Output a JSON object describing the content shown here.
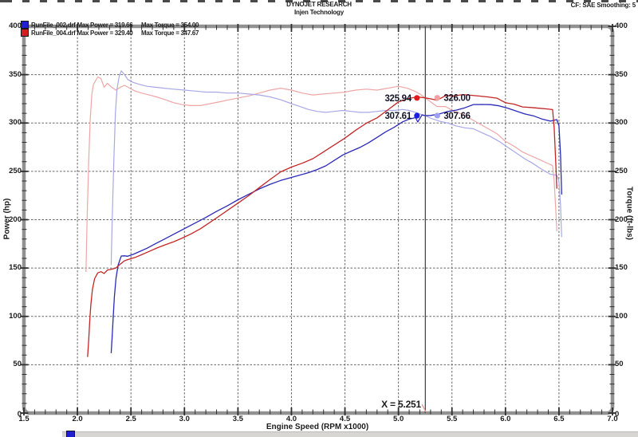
{
  "header": {
    "title": "DYNOJET RESEARCH",
    "subtitle": "Injen Technology",
    "correction": "CF: SAE Smoothing: 5"
  },
  "legend": [
    {
      "file": "RunFile_002.drf",
      "max_power_label": "Max Power = 319.66",
      "max_torque_label": "Max Torque = 354.00",
      "color": "#2020d0"
    },
    {
      "file": "RunFile_004.drf",
      "max_power_label": "Max Power = 329.40",
      "max_torque_label": "Max Torque = 347.67",
      "color": "#d02020"
    }
  ],
  "cursor": {
    "x": 5.251,
    "label": "X = 5.251",
    "line_color": "#3c3c3c",
    "leader_color": "#e89090",
    "markers": [
      {
        "label": "325.94",
        "value": 325.94,
        "side": "left",
        "color": "#e01d1d"
      },
      {
        "label": "326.00",
        "value": 326.0,
        "side": "right",
        "color": "#f2a0a0"
      },
      {
        "label": "307.61",
        "value": 307.61,
        "side": "left",
        "color": "#1d1de0"
      },
      {
        "label": "307.66",
        "value": 307.66,
        "side": "right",
        "color": "#a0a0f2"
      }
    ]
  },
  "axes": {
    "x_title": "Engine Speed (RPM x1000)",
    "y_left_title": "Power (hp)",
    "y_right_title": "Torque (ft-lbs)",
    "x_ticks": [
      1.5,
      2.0,
      2.5,
      3.0,
      3.5,
      4.0,
      4.5,
      5.0,
      5.5,
      6.0,
      6.5,
      7.0
    ],
    "y_ticks": [
      400,
      350,
      300,
      250,
      200,
      150,
      100,
      50,
      0
    ]
  },
  "chart_data": {
    "type": "line",
    "xlabel": "Engine Speed (RPM x1000)",
    "ylabel_left": "Power (hp)",
    "ylabel_right": "Torque (ft-lbs)",
    "xlim": [
      1.5,
      7.0
    ],
    "ylim": [
      0,
      400
    ],
    "grid": "dashed",
    "grid_color": "#666666",
    "frame_color": "#919191",
    "cursor_crossover_rpm": 5.251,
    "series": [
      {
        "name": "torque-runfile-004",
        "run": "RunFile_004.drf",
        "unit": "ft-lbs",
        "color": "#efa6a6",
        "width": 1.2,
        "points": [
          [
            2.08,
            146
          ],
          [
            2.09,
            200
          ],
          [
            2.105,
            260
          ],
          [
            2.12,
            305
          ],
          [
            2.135,
            330
          ],
          [
            2.15,
            340
          ],
          [
            2.19,
            347.67
          ],
          [
            2.22,
            346
          ],
          [
            2.25,
            337
          ],
          [
            2.28,
            341
          ],
          [
            2.32,
            337
          ],
          [
            2.36,
            334
          ],
          [
            2.4,
            337
          ],
          [
            2.44,
            339
          ],
          [
            2.49,
            336
          ],
          [
            2.54,
            333
          ],
          [
            2.6,
            331
          ],
          [
            2.67,
            329
          ],
          [
            2.74,
            327
          ],
          [
            2.82,
            324
          ],
          [
            2.9,
            321
          ],
          [
            2.98,
            319
          ],
          [
            3.06,
            318
          ],
          [
            3.15,
            318
          ],
          [
            3.24,
            320
          ],
          [
            3.33,
            322
          ],
          [
            3.42,
            324
          ],
          [
            3.51,
            326
          ],
          [
            3.6,
            328
          ],
          [
            3.7,
            331
          ],
          [
            3.8,
            334
          ],
          [
            3.9,
            336
          ],
          [
            4.0,
            334
          ],
          [
            4.1,
            331
          ],
          [
            4.2,
            329
          ],
          [
            4.3,
            330
          ],
          [
            4.4,
            331
          ],
          [
            4.5,
            332
          ],
          [
            4.6,
            334
          ],
          [
            4.7,
            335
          ],
          [
            4.8,
            334
          ],
          [
            4.9,
            336
          ],
          [
            5.0,
            338
          ],
          [
            5.08,
            336
          ],
          [
            5.15,
            333
          ],
          [
            5.2,
            330
          ],
          [
            5.251,
            326
          ],
          [
            5.3,
            322
          ],
          [
            5.36,
            317
          ],
          [
            5.44,
            317
          ],
          [
            5.52,
            312
          ],
          [
            5.6,
            309
          ],
          [
            5.68,
            304
          ],
          [
            5.76,
            299
          ],
          [
            5.84,
            294
          ],
          [
            5.92,
            289
          ],
          [
            6.0,
            281
          ],
          [
            6.08,
            276
          ],
          [
            6.16,
            270
          ],
          [
            6.24,
            266
          ],
          [
            6.32,
            262
          ],
          [
            6.38,
            259
          ],
          [
            6.44,
            256
          ],
          [
            6.455,
            240
          ],
          [
            6.47,
            210
          ],
          [
            6.48,
            188
          ]
        ]
      },
      {
        "name": "torque-runfile-002",
        "run": "RunFile_002.drf",
        "unit": "ft-lbs",
        "color": "#a8a8e8",
        "width": 1.2,
        "points": [
          [
            2.315,
            153
          ],
          [
            2.325,
            200
          ],
          [
            2.34,
            260
          ],
          [
            2.355,
            310
          ],
          [
            2.37,
            335
          ],
          [
            2.39,
            348
          ],
          [
            2.41,
            354
          ],
          [
            2.44,
            350
          ],
          [
            2.47,
            345
          ],
          [
            2.52,
            342
          ],
          [
            2.58,
            340
          ],
          [
            2.65,
            338
          ],
          [
            2.73,
            337
          ],
          [
            2.81,
            336
          ],
          [
            2.9,
            335
          ],
          [
            3.0,
            334
          ],
          [
            3.1,
            333
          ],
          [
            3.2,
            332
          ],
          [
            3.3,
            332
          ],
          [
            3.4,
            331
          ],
          [
            3.5,
            331
          ],
          [
            3.6,
            330
          ],
          [
            3.7,
            329
          ],
          [
            3.8,
            327
          ],
          [
            3.9,
            324
          ],
          [
            4.0,
            320
          ],
          [
            4.08,
            317
          ],
          [
            4.16,
            314
          ],
          [
            4.24,
            312
          ],
          [
            4.32,
            311
          ],
          [
            4.4,
            312
          ],
          [
            4.48,
            313
          ],
          [
            4.56,
            312
          ],
          [
            4.64,
            311
          ],
          [
            4.72,
            311
          ],
          [
            4.8,
            312
          ],
          [
            4.88,
            313
          ],
          [
            4.96,
            313
          ],
          [
            5.04,
            314
          ],
          [
            5.1,
            313
          ],
          [
            5.16,
            311
          ],
          [
            5.21,
            309
          ],
          [
            5.251,
            307.66
          ],
          [
            5.3,
            305
          ],
          [
            5.38,
            302
          ],
          [
            5.46,
            300
          ],
          [
            5.54,
            297
          ],
          [
            5.62,
            295
          ],
          [
            5.7,
            294
          ],
          [
            5.78,
            290
          ],
          [
            5.86,
            286
          ],
          [
            5.94,
            281
          ],
          [
            6.02,
            275
          ],
          [
            6.1,
            269
          ],
          [
            6.18,
            263
          ],
          [
            6.26,
            258
          ],
          [
            6.34,
            252
          ],
          [
            6.42,
            247
          ],
          [
            6.48,
            246
          ],
          [
            6.5,
            240
          ],
          [
            6.515,
            215
          ],
          [
            6.525,
            182
          ]
        ]
      },
      {
        "name": "power-runfile-002",
        "run": "RunFile_002.drf",
        "unit": "hp",
        "color": "#2a2ab8",
        "width": 1.3,
        "points": [
          [
            2.315,
            62
          ],
          [
            2.325,
            80
          ],
          [
            2.335,
            100
          ],
          [
            2.345,
            120
          ],
          [
            2.36,
            139
          ],
          [
            2.38,
            153
          ],
          [
            2.4,
            159.5
          ],
          [
            2.41,
            162.5
          ],
          [
            2.44,
            162.6
          ],
          [
            2.47,
            162.2
          ],
          [
            2.52,
            164.1
          ],
          [
            2.58,
            167
          ],
          [
            2.65,
            170.5
          ],
          [
            2.73,
            175.2
          ],
          [
            2.81,
            179.7
          ],
          [
            2.9,
            185
          ],
          [
            3.0,
            190.8
          ],
          [
            3.1,
            196.5
          ],
          [
            3.2,
            202.3
          ],
          [
            3.3,
            208.6
          ],
          [
            3.4,
            214.3
          ],
          [
            3.5,
            220.6
          ],
          [
            3.6,
            226.2
          ],
          [
            3.7,
            231.8
          ],
          [
            3.8,
            236.6
          ],
          [
            3.9,
            240.6
          ],
          [
            4.0,
            243.7
          ],
          [
            4.08,
            246.2
          ],
          [
            4.16,
            248.7
          ],
          [
            4.24,
            251.9
          ],
          [
            4.32,
            255.7
          ],
          [
            4.4,
            261.3
          ],
          [
            4.48,
            267
          ],
          [
            4.56,
            270.9
          ],
          [
            4.64,
            274.7
          ],
          [
            4.72,
            279.5
          ],
          [
            4.8,
            285.1
          ],
          [
            4.88,
            290.8
          ],
          [
            4.96,
            295.6
          ],
          [
            5.04,
            301.3
          ],
          [
            5.1,
            304
          ],
          [
            5.16,
            305.6
          ],
          [
            5.18,
            301
          ],
          [
            5.22,
            308.3
          ],
          [
            5.251,
            307.61
          ],
          [
            5.3,
            307.8
          ],
          [
            5.38,
            309.3
          ],
          [
            5.46,
            311.9
          ],
          [
            5.54,
            313.3
          ],
          [
            5.62,
            315.7
          ],
          [
            5.7,
            319.1
          ],
          [
            5.78,
            319.2
          ],
          [
            5.86,
            319
          ],
          [
            5.94,
            317.8
          ],
          [
            6.02,
            315.4
          ],
          [
            6.1,
            312.4
          ],
          [
            6.18,
            309.4
          ],
          [
            6.26,
            307.5
          ],
          [
            6.34,
            304.2
          ],
          [
            6.42,
            301.9
          ],
          [
            6.48,
            303.5
          ],
          [
            6.5,
            297.2
          ],
          [
            6.515,
            266.7
          ],
          [
            6.525,
            226.1
          ]
        ]
      },
      {
        "name": "power-runfile-004",
        "run": "RunFile_004.drf",
        "unit": "hp",
        "color": "#c42626",
        "width": 1.3,
        "points": [
          [
            2.095,
            58
          ],
          [
            2.105,
            75
          ],
          [
            2.115,
            95
          ],
          [
            2.125,
            112
          ],
          [
            2.14,
            128
          ],
          [
            2.16,
            139
          ],
          [
            2.19,
            145
          ],
          [
            2.22,
            146.2
          ],
          [
            2.25,
            144.4
          ],
          [
            2.28,
            148
          ],
          [
            2.32,
            148.8
          ],
          [
            2.36,
            150.1
          ],
          [
            2.4,
            154
          ],
          [
            2.44,
            157.5
          ],
          [
            2.49,
            159.3
          ],
          [
            2.54,
            161
          ],
          [
            2.6,
            163.8
          ],
          [
            2.67,
            167.2
          ],
          [
            2.74,
            170.6
          ],
          [
            2.82,
            174
          ],
          [
            2.9,
            177.2
          ],
          [
            2.98,
            181
          ],
          [
            3.06,
            185.2
          ],
          [
            3.15,
            190.7
          ],
          [
            3.24,
            197.4
          ],
          [
            3.33,
            204.1
          ],
          [
            3.42,
            211
          ],
          [
            3.51,
            217.9
          ],
          [
            3.6,
            224.8
          ],
          [
            3.7,
            233.2
          ],
          [
            3.8,
            241.6
          ],
          [
            3.9,
            249.5
          ],
          [
            4.0,
            254.4
          ],
          [
            4.1,
            258.4
          ],
          [
            4.2,
            263.1
          ],
          [
            4.3,
            270.2
          ],
          [
            4.4,
            277.3
          ],
          [
            4.5,
            284.4
          ],
          [
            4.6,
            292.5
          ],
          [
            4.7,
            299.8
          ],
          [
            4.8,
            305.3
          ],
          [
            4.9,
            313.5
          ],
          [
            5.0,
            321.8
          ],
          [
            5.08,
            325
          ],
          [
            5.15,
            326.5
          ],
          [
            5.2,
            326.7
          ],
          [
            5.251,
            325.94
          ],
          [
            5.3,
            325
          ],
          [
            5.36,
            323.5
          ],
          [
            5.44,
            328.3
          ],
          [
            5.52,
            327.9
          ],
          [
            5.6,
            329.4
          ],
          [
            5.68,
            328.7
          ],
          [
            5.76,
            327.8
          ],
          [
            5.84,
            326.9
          ],
          [
            5.92,
            325.7
          ],
          [
            6.0,
            321
          ],
          [
            6.08,
            319.5
          ],
          [
            6.16,
            316.6
          ],
          [
            6.24,
            316
          ],
          [
            6.32,
            315.2
          ],
          [
            6.38,
            314.6
          ],
          [
            6.44,
            313.9
          ],
          [
            6.455,
            295
          ],
          [
            6.47,
            258.6
          ],
          [
            6.48,
            232.1
          ]
        ]
      }
    ]
  }
}
